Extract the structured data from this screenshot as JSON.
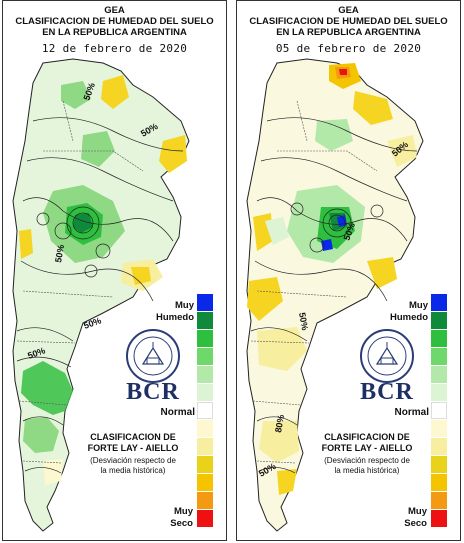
{
  "panels": [
    {
      "title_line1": "GEA",
      "title_line2": "CLASIFICACION DE HUMEDAD DEL SUELO",
      "title_line3": "EN LA REPUBLICA ARGENTINA",
      "date": "12 de febrero de 2020",
      "contour_labels": [
        "50%",
        "50%",
        "50%",
        "50%",
        "50%"
      ]
    },
    {
      "title_line1": "GEA",
      "title_line2": "CLASIFICACION DE HUMEDAD DEL SUELO",
      "title_line3": "EN LA REPUBLICA ARGENTINA",
      "date": "05 de febrero de 2020",
      "contour_labels": [
        "50%",
        "50%",
        "50%",
        "80%",
        "50%"
      ]
    }
  ],
  "legend": {
    "muy_humedo_1": "Muy",
    "muy_humedo_2": "Humedo",
    "normal": "Normal",
    "muy_seco_1": "Muy",
    "muy_seco_2": "Seco",
    "classes": [
      {
        "name": "muy-humedo",
        "color": "#0a28e8"
      },
      {
        "name": "humedo-3",
        "color": "#0f8a3a"
      },
      {
        "name": "humedo-2",
        "color": "#2fbf3f"
      },
      {
        "name": "humedo-1",
        "color": "#6fd86a"
      },
      {
        "name": "levemente-humedo",
        "color": "#b2e8a8"
      },
      {
        "name": "normal-humedo",
        "color": "#dcf3d4"
      },
      {
        "name": "normal",
        "color": "#ffffff"
      },
      {
        "name": "normal-seco",
        "color": "#fdf8d0"
      },
      {
        "name": "levemente-seco",
        "color": "#f7eea0"
      },
      {
        "name": "seco-1",
        "color": "#e8d21a"
      },
      {
        "name": "seco-2",
        "color": "#f5c400"
      },
      {
        "name": "seco-3",
        "color": "#f39a12"
      },
      {
        "name": "muy-seco",
        "color": "#ee1111"
      }
    ]
  },
  "classification": {
    "title_line1": "CLASIFICACION DE",
    "title_line2": "FORTE LAY - AIELLO",
    "note_line1": "(Desviación respecto de",
    "note_line2": "la media histórica)"
  },
  "logo": {
    "text": "BCR",
    "seal_text": "BOLSA DE COMERCIO DE ROSARIO"
  }
}
